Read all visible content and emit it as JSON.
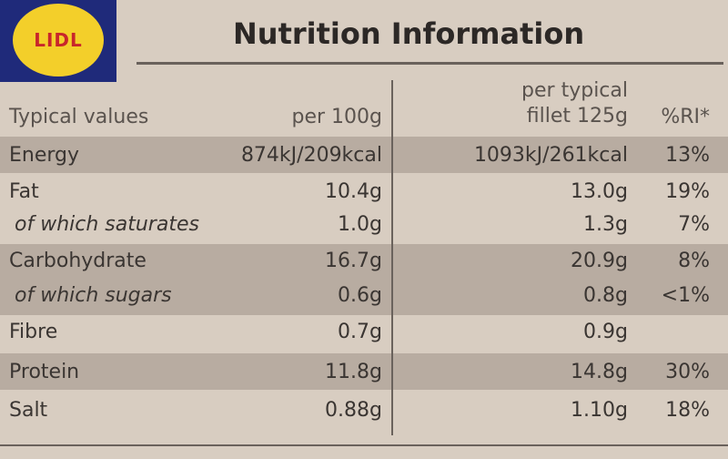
{
  "logo": "LIDL",
  "title": "Nutrition Information",
  "header": [
    "Typical values",
    "per 100g",
    "per typical fillet 125g",
    "%RI*"
  ],
  "rows": [
    [
      "Energy",
      "874kJ/209kcal",
      "1093kJ/261kcal",
      "13%"
    ],
    [
      "Fat",
      "10.4g",
      "13.0g",
      "19%"
    ],
    [
      "of which saturates",
      "1.0g",
      "1.3g",
      "7%"
    ],
    [
      "Carbohydrate",
      "16.7g",
      "20.9g",
      "8%"
    ],
    [
      "of which sugars",
      "0.6g",
      "0.8g",
      "<1%"
    ],
    [
      "Fibre",
      "0.7g",
      "0.9g"
    ],
    [
      "Protein",
      "11.8g",
      "14.8g",
      "30%"
    ],
    [
      "Salt",
      "0.88g",
      "1.10g",
      "18%"
    ]
  ]
}
